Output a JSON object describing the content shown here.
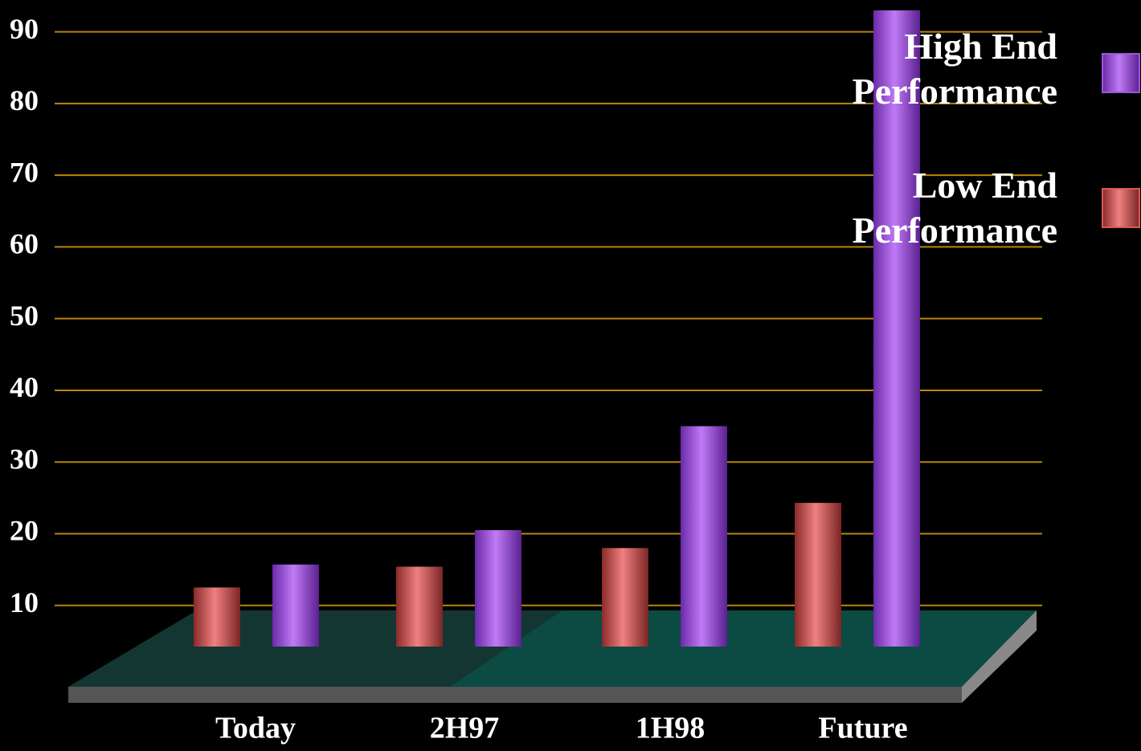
{
  "chart_data": {
    "type": "bar",
    "categories": [
      "Today",
      "2H97",
      "1H98",
      "Future"
    ],
    "series": [
      {
        "name": "High End Performance",
        "color": "#9b55e0",
        "values": [
          15.7,
          20.5,
          35,
          93
        ]
      },
      {
        "name": "Low End Performance",
        "color": "#d45a5a",
        "values": [
          12.5,
          15.4,
          18,
          24.3
        ]
      }
    ],
    "ylim": [
      0,
      95
    ],
    "yticks": [
      10,
      20,
      30,
      40,
      50,
      60,
      70,
      80,
      90
    ],
    "grid": true,
    "legend": "upper right"
  }
}
